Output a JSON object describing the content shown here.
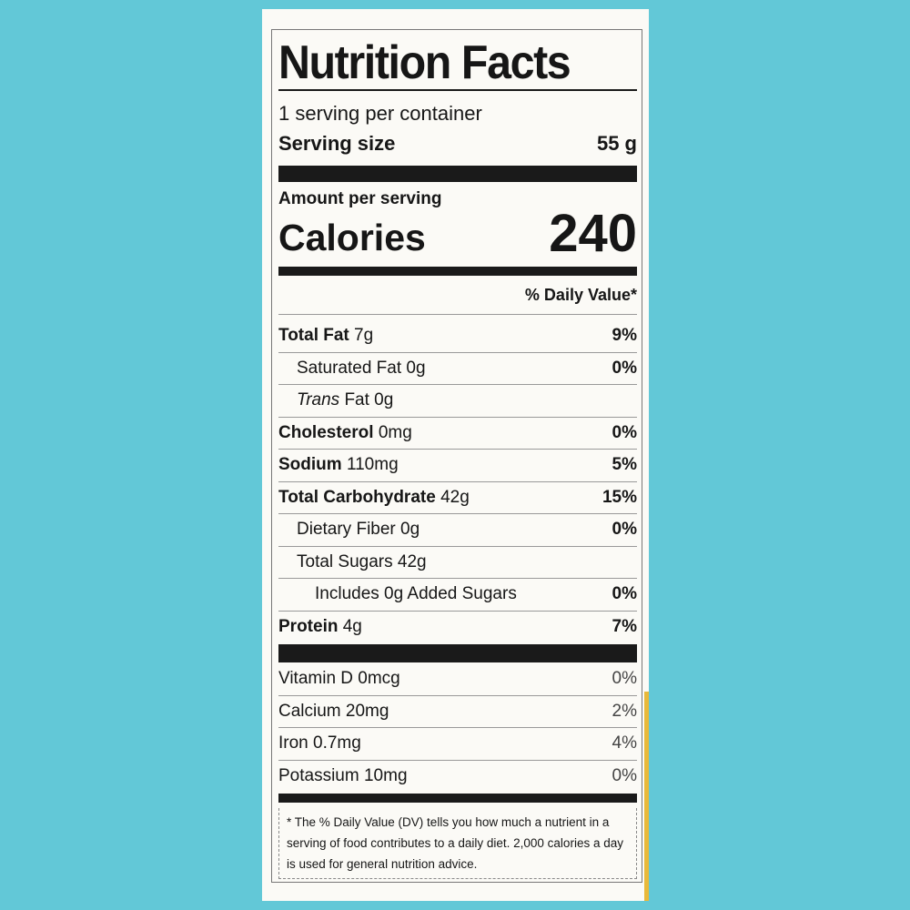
{
  "label": {
    "title": "Nutrition Facts",
    "servings_per_container": "1 serving per container",
    "serving_size_label": "Serving size",
    "serving_size_value": "55 g",
    "amount_per_serving": "Amount per serving",
    "calories_label": "Calories",
    "calories_value": "240",
    "daily_value_header": "% Daily Value*",
    "nutrients": [
      {
        "name": "Total Fat",
        "amount": "7g",
        "dv": "9%"
      },
      {
        "name": "Saturated Fat",
        "amount": "0g",
        "dv": "0%"
      },
      {
        "name": "Trans",
        "amount": "Fat 0g",
        "dv": ""
      },
      {
        "name": "Cholesterol",
        "amount": "0mg",
        "dv": "0%"
      },
      {
        "name": "Sodium",
        "amount": "110mg",
        "dv": "5%"
      },
      {
        "name": "Total Carbohydrate",
        "amount": "42g",
        "dv": "15%"
      },
      {
        "name": "Dietary Fiber",
        "amount": "0g",
        "dv": "0%"
      },
      {
        "name": "Total Sugars",
        "amount": "42g",
        "dv": ""
      },
      {
        "name": "Includes 0g Added Sugars",
        "amount": "",
        "dv": "0%"
      },
      {
        "name": "Protein",
        "amount": "4g",
        "dv": "7%"
      }
    ],
    "vitamins": [
      {
        "name": "Vitamin D 0mcg",
        "dv": "0%"
      },
      {
        "name": "Calcium 20mg",
        "dv": "2%"
      },
      {
        "name": "Iron 0.7mg",
        "dv": "4%"
      },
      {
        "name": "Potassium 10mg",
        "dv": "0%"
      }
    ],
    "footnote": "* The % Daily Value (DV) tells you how much a nutrient in a serving of food contributes to a daily diet. 2,000 calories a day is used for general nutrition advice."
  },
  "colors": {
    "background": "#62c8d7",
    "label": "#fbfaf6",
    "ink": "#161616"
  }
}
